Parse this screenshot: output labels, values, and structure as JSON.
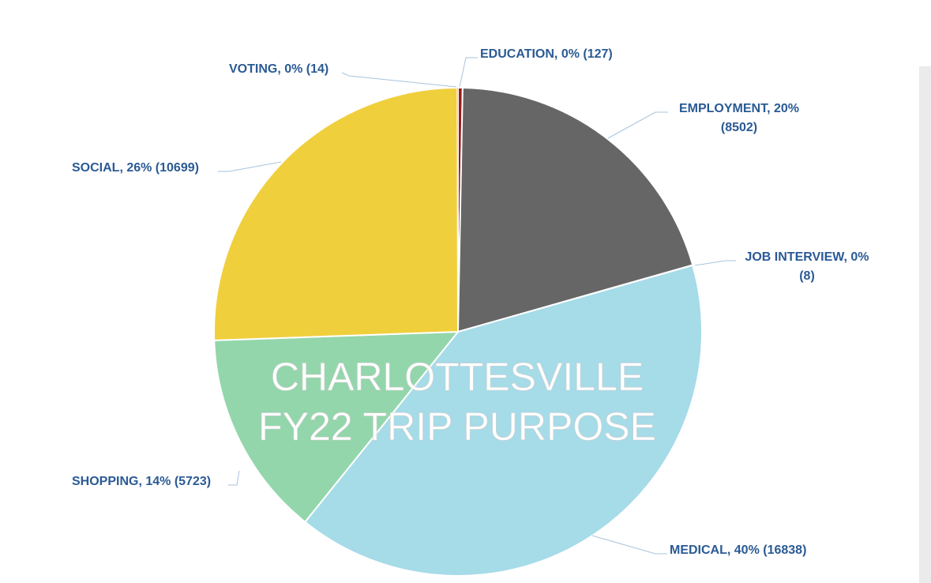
{
  "chart_data": {
    "type": "pie",
    "title_lines": [
      "CHARLOTTESVILLE",
      "FY22 TRIP PURPOSE"
    ],
    "slices": [
      {
        "name": "EDUCATION",
        "value": 127,
        "color": "#9b1c1c",
        "label_lines": [
          "EDUCATION, 0% (127)"
        ]
      },
      {
        "name": "EMPLOYMENT",
        "value": 8502,
        "color": "#666666",
        "label_lines": [
          "EMPLOYMENT, 20%",
          "(8502)"
        ]
      },
      {
        "name": "JOB INTERVIEW",
        "value": 8,
        "color": "#1f3c6e",
        "label_lines": [
          "JOB INTERVIEW, 0%",
          "(8)"
        ]
      },
      {
        "name": "MEDICAL",
        "value": 16838,
        "color": "#a6dbe8",
        "label_lines": [
          "MEDICAL, 40% (16838)"
        ]
      },
      {
        "name": "SHOPPING",
        "value": 5723,
        "color": "#93d6ab",
        "label_lines": [
          "SHOPPING, 14% (5723)"
        ]
      },
      {
        "name": "SOCIAL",
        "value": 10699,
        "color": "#f0cf3d",
        "label_lines": [
          "SOCIAL, 26% (10699)"
        ]
      },
      {
        "name": "VOTING",
        "value": 14,
        "color": "#c0392b",
        "label_lines": [
          "VOTING, 0% (14)"
        ]
      }
    ],
    "legend": "none",
    "data_label_color": "#2a5a94",
    "leader_line_color": "#a9c3dd"
  }
}
